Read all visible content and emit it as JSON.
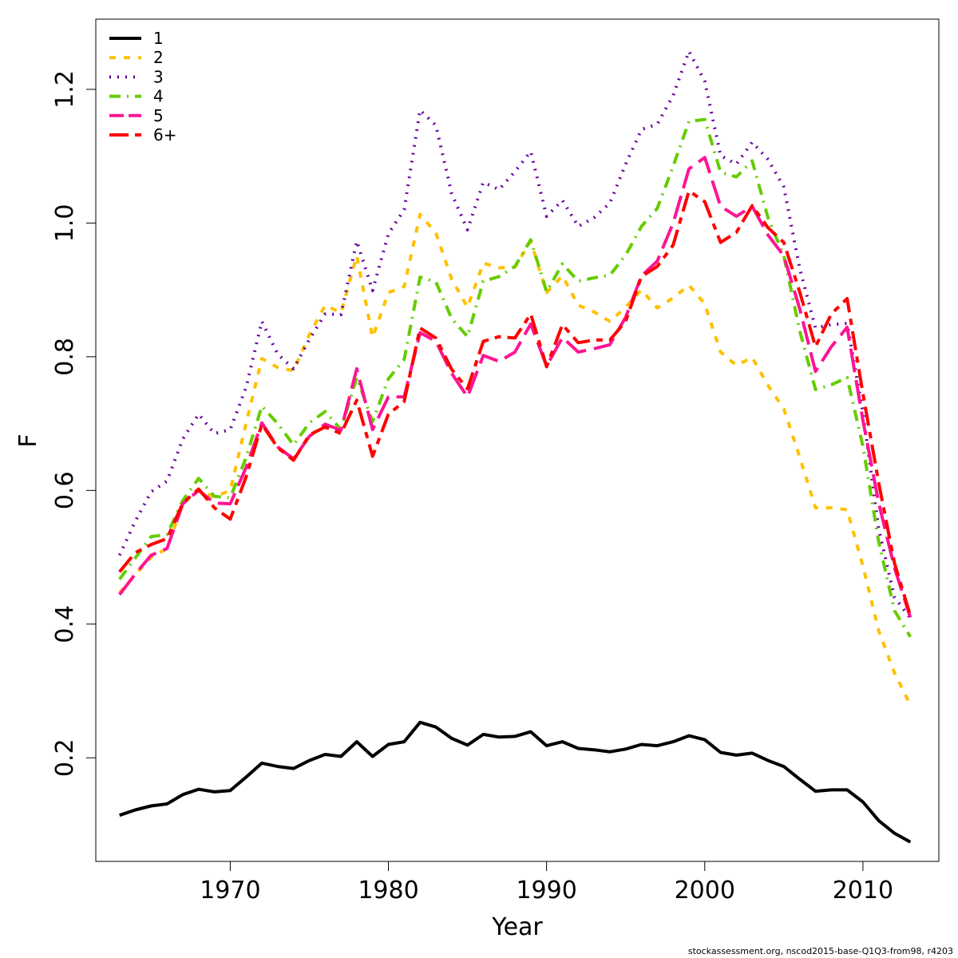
{
  "footer": "stockassessment.org, nscod2015-base-Q1Q3-from98, r4203",
  "chart_data": {
    "type": "line",
    "title": "",
    "xlabel": "Year",
    "ylabel": "F",
    "xlim": [
      1961.5,
      2014.8
    ],
    "ylim": [
      0.045,
      1.305
    ],
    "xticks": [
      1970,
      1980,
      1990,
      2000,
      2010
    ],
    "yticks": [
      0.2,
      0.4,
      0.6,
      0.8,
      1.0,
      1.2
    ],
    "yticklabels": [
      "0.2",
      "0.4",
      "0.6",
      "0.8",
      "1.0",
      "1.2"
    ],
    "grid": false,
    "legend_position": "top-left",
    "x": [
      1963,
      1964,
      1965,
      1966,
      1967,
      1968,
      1969,
      1970,
      1971,
      1972,
      1973,
      1974,
      1975,
      1976,
      1977,
      1978,
      1979,
      1980,
      1981,
      1982,
      1983,
      1984,
      1985,
      1986,
      1987,
      1988,
      1989,
      1990,
      1991,
      1992,
      1993,
      1994,
      1995,
      1996,
      1997,
      1998,
      1999,
      2000,
      2001,
      2002,
      2003,
      2004,
      2005,
      2006,
      2007,
      2008,
      2009,
      2010,
      2011,
      2012,
      2013
    ],
    "series": [
      {
        "name": "1",
        "color": "#000000",
        "dash": "solid",
        "values": [
          0.114,
          0.122,
          0.128,
          0.131,
          0.145,
          0.153,
          0.149,
          0.151,
          0.171,
          0.192,
          0.187,
          0.184,
          0.196,
          0.205,
          0.202,
          0.224,
          0.202,
          0.22,
          0.224,
          0.253,
          0.246,
          0.229,
          0.219,
          0.235,
          0.231,
          0.232,
          0.239,
          0.218,
          0.224,
          0.214,
          0.212,
          0.209,
          0.213,
          0.22,
          0.218,
          0.224,
          0.233,
          0.227,
          0.208,
          0.204,
          0.207,
          0.196,
          0.187,
          0.168,
          0.15,
          0.152,
          0.152,
          0.134,
          0.106,
          0.087,
          0.074
        ]
      },
      {
        "name": "2",
        "color": "#FFC000",
        "dash": "8,10",
        "values": [
          0.447,
          0.474,
          0.5,
          0.513,
          0.58,
          0.6,
          0.59,
          0.6,
          0.7,
          0.797,
          0.784,
          0.779,
          0.833,
          0.877,
          0.866,
          0.951,
          0.829,
          0.896,
          0.905,
          1.013,
          0.985,
          0.916,
          0.874,
          0.94,
          0.933,
          0.934,
          0.973,
          0.896,
          0.921,
          0.877,
          0.867,
          0.853,
          0.874,
          0.9,
          0.873,
          0.888,
          0.907,
          0.879,
          0.807,
          0.787,
          0.799,
          0.757,
          0.722,
          0.65,
          0.574,
          0.574,
          0.571,
          0.487,
          0.39,
          0.327,
          0.279
        ]
      },
      {
        "name": "3",
        "color": "#6600A0",
        "dash": "2,8",
        "values": [
          0.503,
          0.554,
          0.598,
          0.614,
          0.677,
          0.714,
          0.685,
          0.691,
          0.754,
          0.853,
          0.804,
          0.782,
          0.826,
          0.864,
          0.863,
          0.973,
          0.899,
          0.984,
          1.02,
          1.169,
          1.146,
          1.044,
          0.99,
          1.061,
          1.05,
          1.077,
          1.107,
          1.01,
          1.034,
          0.995,
          1.008,
          1.03,
          1.088,
          1.14,
          1.148,
          1.191,
          1.257,
          1.212,
          1.101,
          1.088,
          1.121,
          1.095,
          1.054,
          0.932,
          0.843,
          0.848,
          0.85,
          0.717,
          0.542,
          0.44,
          0.409
        ]
      },
      {
        "name": "4",
        "color": "#66CC00",
        "dash": "14,8,2,8",
        "values": [
          0.467,
          0.499,
          0.531,
          0.534,
          0.585,
          0.618,
          0.591,
          0.589,
          0.649,
          0.726,
          0.7,
          0.668,
          0.701,
          0.718,
          0.691,
          0.769,
          0.703,
          0.767,
          0.796,
          0.919,
          0.912,
          0.857,
          0.83,
          0.913,
          0.92,
          0.935,
          0.975,
          0.897,
          0.939,
          0.913,
          0.918,
          0.922,
          0.952,
          0.995,
          1.022,
          1.085,
          1.152,
          1.155,
          1.076,
          1.069,
          1.093,
          1.008,
          0.951,
          0.839,
          0.751,
          0.758,
          0.769,
          0.666,
          0.523,
          0.42,
          0.381
        ]
      },
      {
        "name": "5",
        "color": "#FF1493",
        "dash": "30,10",
        "values": [
          0.444,
          0.475,
          0.503,
          0.513,
          0.58,
          0.6,
          0.581,
          0.58,
          0.634,
          0.701,
          0.665,
          0.647,
          0.681,
          0.699,
          0.69,
          0.782,
          0.691,
          0.74,
          0.74,
          0.836,
          0.823,
          0.775,
          0.74,
          0.802,
          0.793,
          0.807,
          0.849,
          0.786,
          0.829,
          0.807,
          0.812,
          0.818,
          0.859,
          0.921,
          0.943,
          1.0,
          1.081,
          1.098,
          1.025,
          1.01,
          1.025,
          0.982,
          0.951,
          0.872,
          0.778,
          0.815,
          0.844,
          0.705,
          0.581,
          0.484,
          0.41
        ]
      },
      {
        "name": "6+",
        "color": "#FF0000",
        "dash": "24,8,8,8",
        "values": [
          0.478,
          0.507,
          0.519,
          0.528,
          0.581,
          0.602,
          0.574,
          0.557,
          0.62,
          0.699,
          0.664,
          0.645,
          0.683,
          0.695,
          0.685,
          0.735,
          0.651,
          0.714,
          0.733,
          0.843,
          0.828,
          0.781,
          0.752,
          0.823,
          0.83,
          0.828,
          0.864,
          0.785,
          0.848,
          0.821,
          0.825,
          0.825,
          0.853,
          0.92,
          0.935,
          0.967,
          1.048,
          1.032,
          0.971,
          0.986,
          1.026,
          0.993,
          0.971,
          0.897,
          0.815,
          0.864,
          0.887,
          0.745,
          0.611,
          0.491,
          0.413
        ]
      }
    ]
  }
}
